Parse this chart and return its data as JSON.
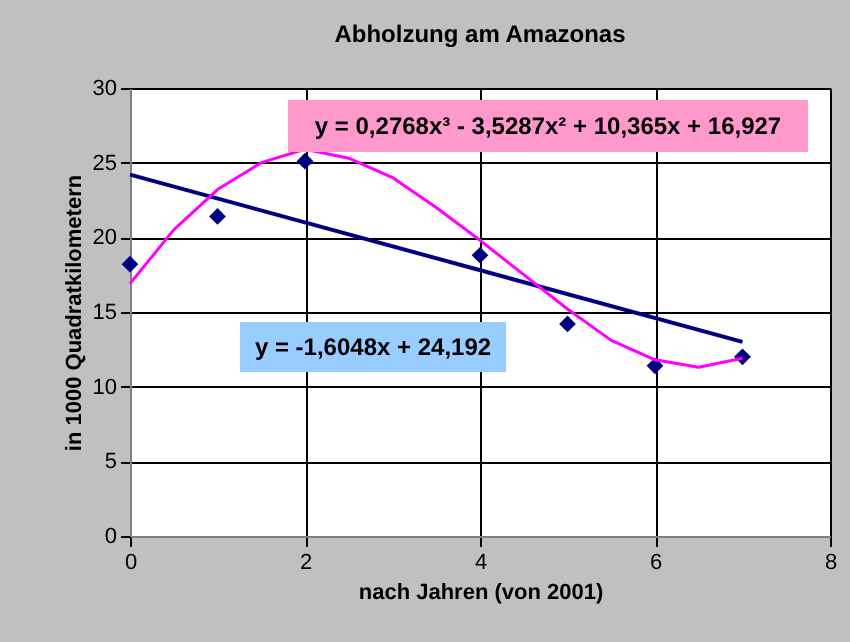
{
  "chart_data": {
    "type": "scatter",
    "title": "Abholzung am Amazonas",
    "xlabel": "nach Jahren (von 2001)",
    "ylabel": "in 1000 Quadratkilometern",
    "x": [
      0,
      1,
      2,
      4,
      5,
      6,
      7
    ],
    "series": [
      {
        "color": "#000080",
        "marker": "diamond",
        "values": [
          18.2,
          21.4,
          25.1,
          18.8,
          14.2,
          11.4,
          12.0
        ]
      },
      {
        "type": "line",
        "color": "#000080",
        "marker": "none",
        "x": [
          0,
          7
        ],
        "values": [
          24.2,
          13.0
        ]
      },
      {
        "type": "line",
        "color": "#ff00ff",
        "marker": "none",
        "x": [
          0,
          0.5,
          1,
          1.5,
          2,
          2.5,
          3,
          3.5,
          4,
          4.5,
          5,
          5.5,
          6,
          6.5,
          7
        ],
        "values": [
          16.9,
          20.5,
          23.2,
          25.0,
          25.9,
          25.3,
          24.0,
          22.0,
          19.8,
          17.5,
          15.2,
          13.1,
          11.8,
          11.3,
          11.9
        ]
      }
    ],
    "annotations": [
      "y = 0,2768x³ - 3,5287x² + 10,365x + 16,927",
      "y = -1,6048x + 24,192"
    ],
    "xlim": [
      0,
      8
    ],
    "xticks": [
      0,
      2,
      4,
      6,
      8
    ],
    "ylim": [
      0,
      30
    ],
    "yticks": [
      0,
      5,
      10,
      15,
      20,
      25,
      30
    ],
    "grid": true
  }
}
